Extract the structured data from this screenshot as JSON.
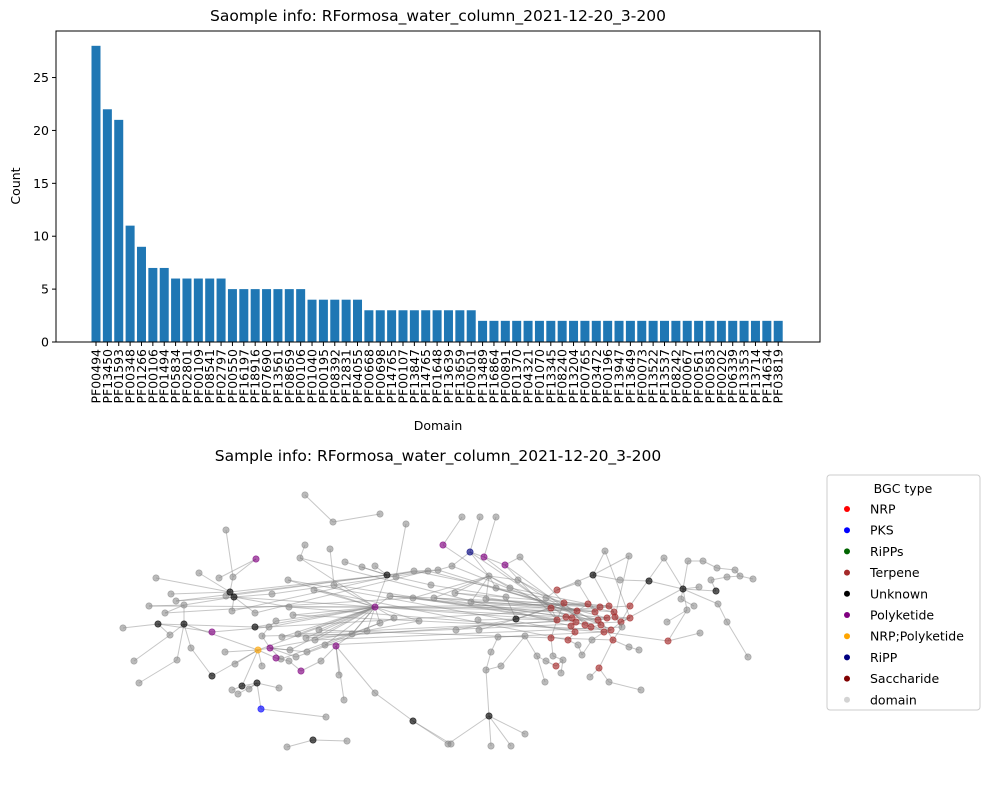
{
  "chart_data": [
    {
      "type": "bar",
      "title": "Saomple info: RFormosa_water_column_2021-12-20_3-200",
      "xlabel": "Domain",
      "ylabel": "Count",
      "ylim": [
        0,
        29.4
      ],
      "yticks": [
        0,
        5,
        10,
        15,
        20,
        25
      ],
      "color": "#1f77b4",
      "categories": [
        "PF00494",
        "PF13450",
        "PF01593",
        "PF00348",
        "PF01266",
        "PF00106",
        "PF01494",
        "PF05834",
        "PF02801",
        "PF00109",
        "PF08541",
        "PF02797",
        "PF00550",
        "PF16197",
        "PF18916",
        "PF07690",
        "PF13561",
        "PF08659",
        "PF00106",
        "PF01040",
        "PF00195",
        "PF08392",
        "PF12831",
        "PF04055",
        "PF00668",
        "PF00698",
        "PF14765",
        "PF00107",
        "PF13847",
        "PF14765",
        "PF01648",
        "PF13639",
        "PF13659",
        "PF00501",
        "PF13489",
        "PF16864",
        "PF00891",
        "PF01370",
        "PF04321",
        "PF01070",
        "PF13345",
        "PF08240",
        "PF13204",
        "PF00765",
        "PF03472",
        "PF00196",
        "PF13947",
        "PF13649",
        "PF00073",
        "PF13522",
        "PF13537",
        "PF08242",
        "PF00067",
        "PF00561",
        "PF00583",
        "PF00202",
        "PF06339",
        "PF13353",
        "PF13714",
        "PF14634",
        "PF03819"
      ],
      "values": [
        28,
        22,
        21,
        11,
        9,
        7,
        7,
        6,
        6,
        6,
        6,
        6,
        5,
        5,
        5,
        5,
        5,
        5,
        5,
        4,
        4,
        4,
        4,
        4,
        3,
        3,
        3,
        3,
        3,
        3,
        3,
        3,
        3,
        3,
        2,
        2,
        2,
        2,
        2,
        2,
        2,
        2,
        2,
        2,
        2,
        2,
        2,
        2,
        2,
        2,
        2,
        2,
        2,
        2,
        2,
        2,
        2,
        2,
        2,
        2,
        2
      ]
    },
    {
      "type": "network",
      "title": "Sample info: RFormosa_water_column_2021-12-20_3-200",
      "legend": {
        "title": "BGC type",
        "position": "right",
        "entries": [
          {
            "name": "NRP",
            "color": "#ff0000"
          },
          {
            "name": "PKS",
            "color": "#0000ff"
          },
          {
            "name": "RiPPs",
            "color": "#006400"
          },
          {
            "name": "Terpene",
            "color": "#a52a2a"
          },
          {
            "name": "Unknown",
            "color": "#000000"
          },
          {
            "name": "Polyketide",
            "color": "#800080"
          },
          {
            "name": "NRP;Polyketide",
            "color": "#ffa500"
          },
          {
            "name": "RiPP",
            "color": "#000080"
          },
          {
            "name": "Saccharide",
            "color": "#800000"
          },
          {
            "name": "domain",
            "color": "#d3d3d3"
          }
        ]
      }
    }
  ]
}
